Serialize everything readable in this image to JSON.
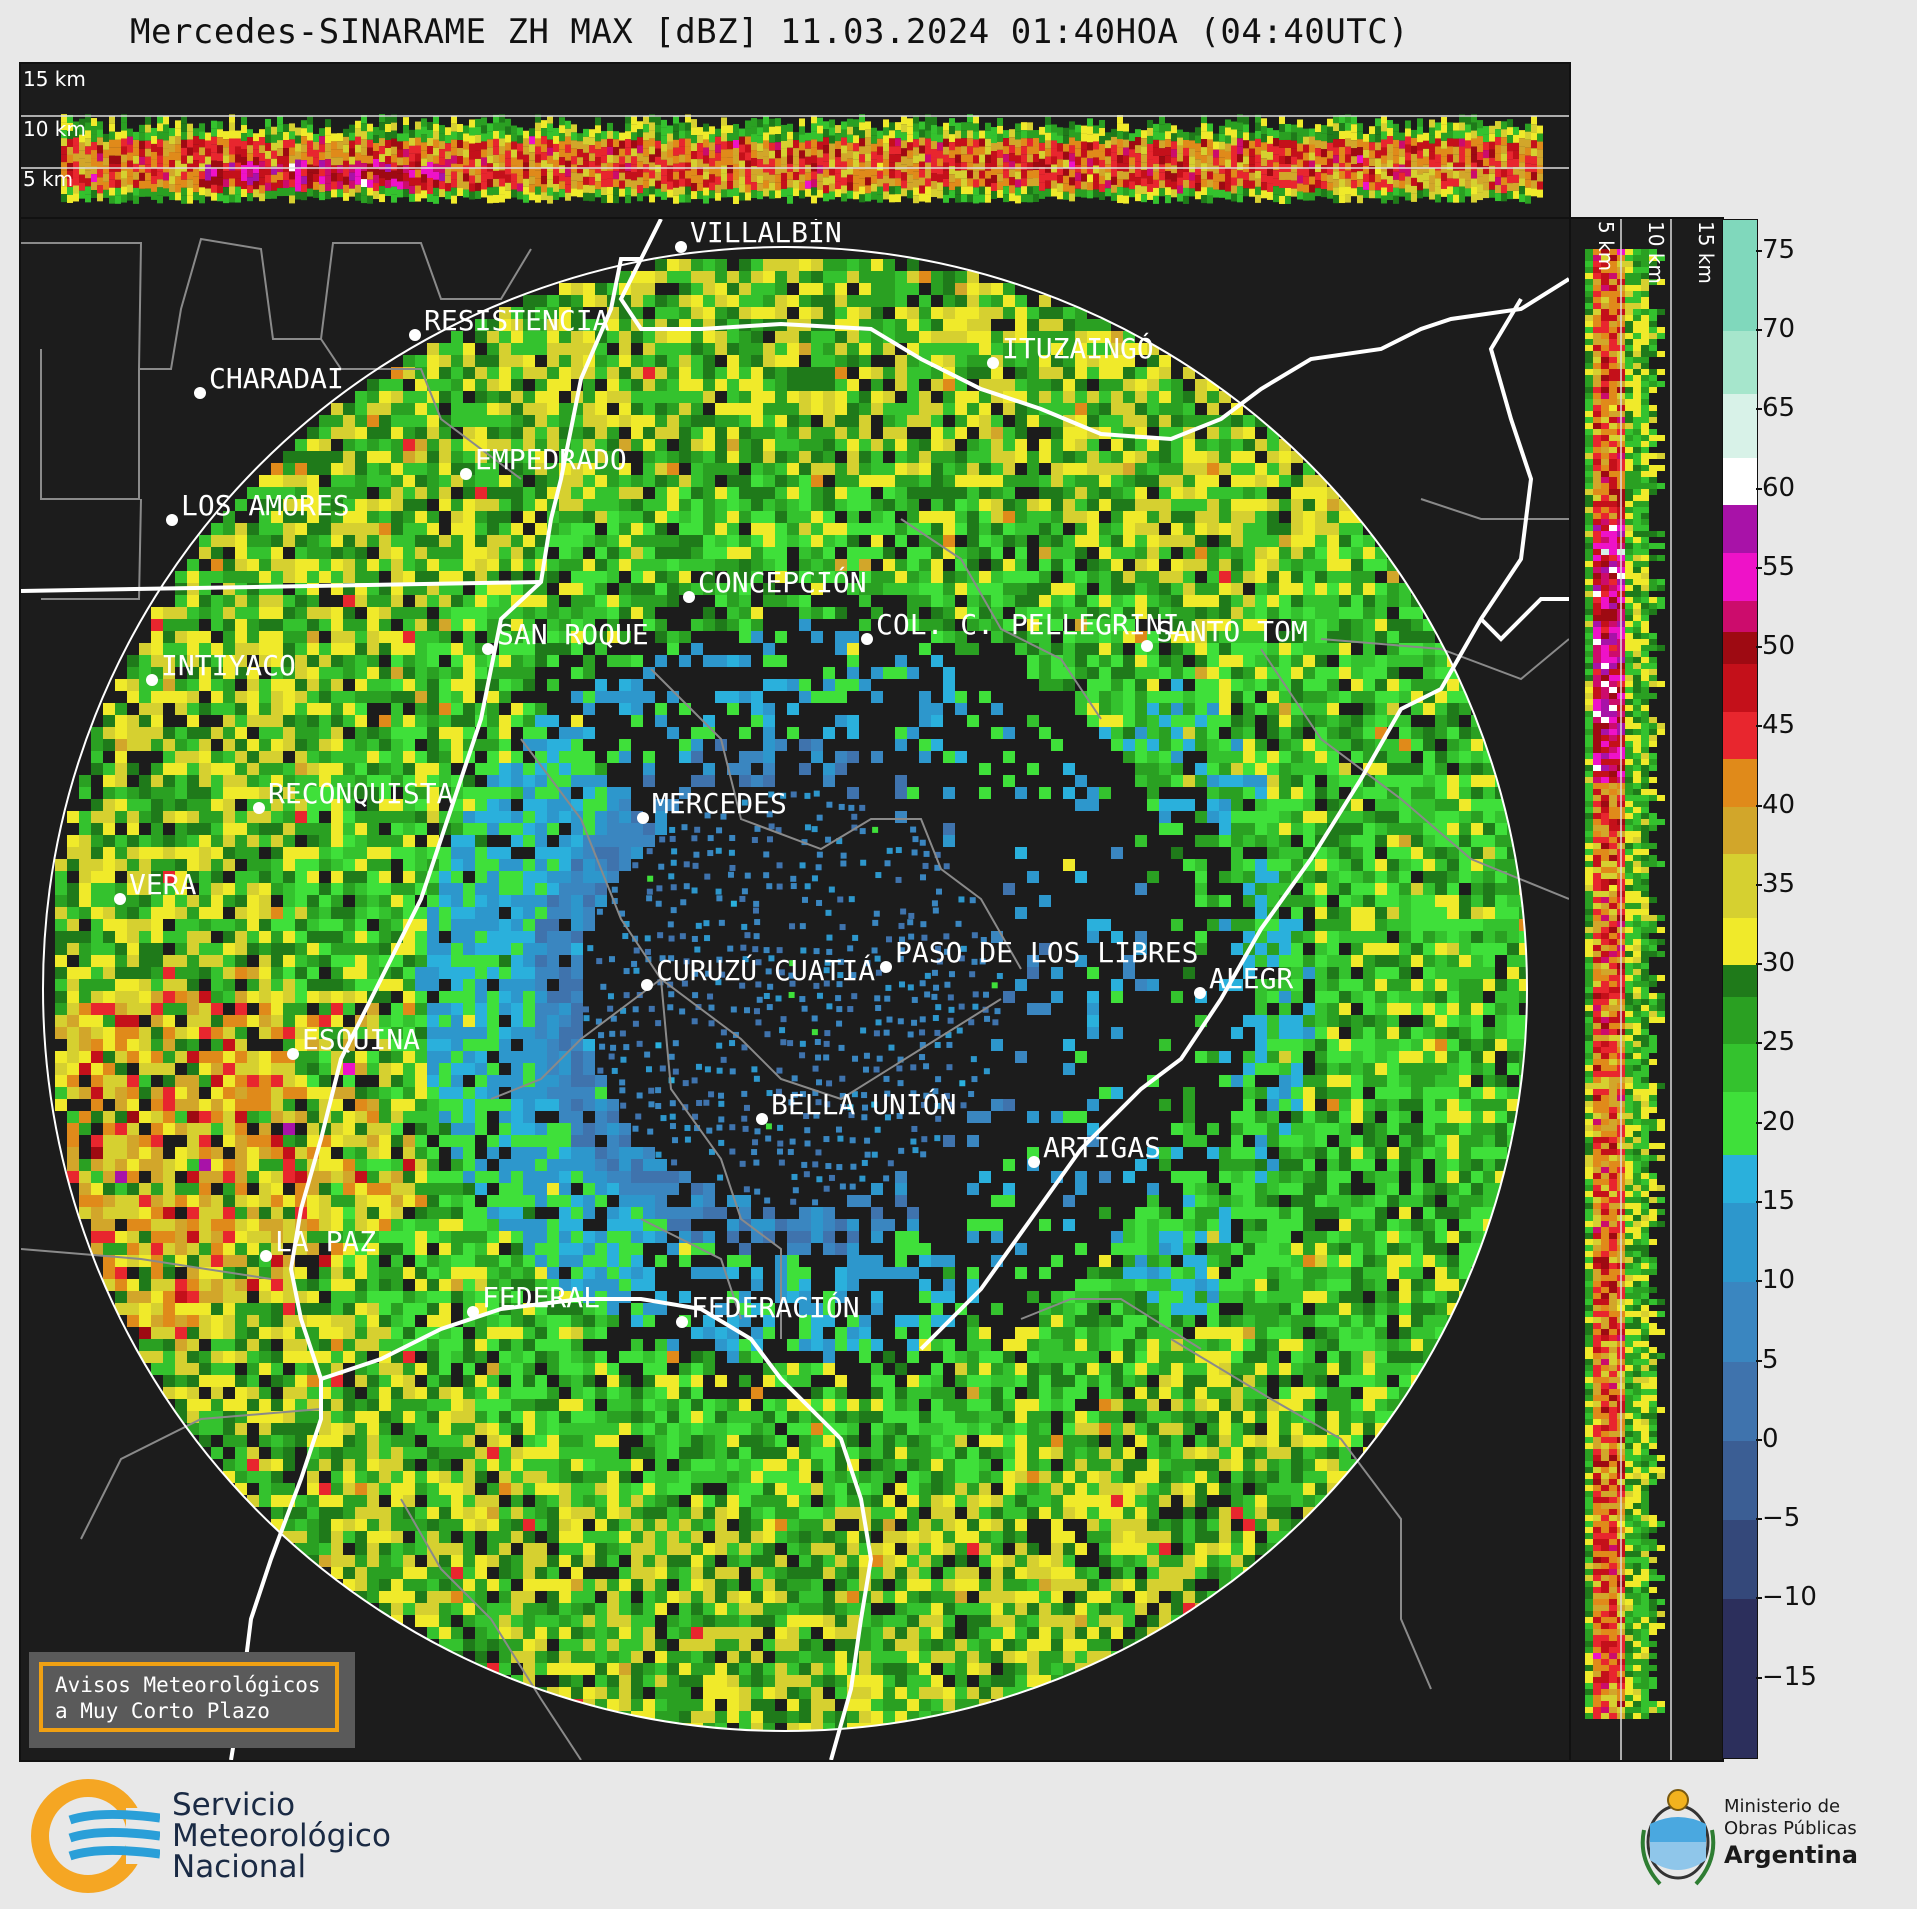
{
  "header": {
    "title": "Mercedes-SINARAME ZH MAX [dBZ] 11.03.2024 01:40HOA (04:40UTC)"
  },
  "top_panel": {
    "height_labels": [
      "15 km",
      "10 km",
      "5 km"
    ]
  },
  "side_panel": {
    "height_labels": [
      "5 km",
      "10 km",
      "15 km"
    ]
  },
  "colorbar": {
    "unit": "dBZ",
    "ticks": [
      "75",
      "70",
      "65",
      "60",
      "55",
      "50",
      "45",
      "40",
      "35",
      "30",
      "25",
      "20",
      "15",
      "10",
      "5",
      "0",
      "−5",
      "−10",
      "−15"
    ],
    "range": [
      -20,
      77
    ],
    "stops": [
      {
        "from": -20,
        "color": "#2c2f5c"
      },
      {
        "from": -10,
        "color": "#34487a"
      },
      {
        "from": -5,
        "color": "#3b5e94"
      },
      {
        "from": 0,
        "color": "#3f73ad"
      },
      {
        "from": 5,
        "color": "#3a86c0"
      },
      {
        "from": 10,
        "color": "#2d97cc"
      },
      {
        "from": 15,
        "color": "#2ab0dc"
      },
      {
        "from": 18,
        "color": "#3fe03a"
      },
      {
        "from": 22,
        "color": "#34c22e"
      },
      {
        "from": 25,
        "color": "#2aa022"
      },
      {
        "from": 28,
        "color": "#1f7a1a"
      },
      {
        "from": 30,
        "color": "#f0ea2a"
      },
      {
        "from": 33,
        "color": "#d6d030"
      },
      {
        "from": 37,
        "color": "#d2a62a"
      },
      {
        "from": 40,
        "color": "#e08a1a"
      },
      {
        "from": 43,
        "color": "#e8262e"
      },
      {
        "from": 46,
        "color": "#c4101a"
      },
      {
        "from": 49,
        "color": "#9e0a12"
      },
      {
        "from": 51,
        "color": "#cc0c6c"
      },
      {
        "from": 53,
        "color": "#ee12c8"
      },
      {
        "from": 56,
        "color": "#a812a8"
      },
      {
        "from": 59,
        "color": "#ffffff"
      },
      {
        "from": 62,
        "color": "#d8f2e8"
      },
      {
        "from": 66,
        "color": "#a6e6cc"
      },
      {
        "from": 70,
        "color": "#80d8bc"
      }
    ]
  },
  "cities": [
    {
      "name": "VILLALBÍN"
    },
    {
      "name": "RESISTENCIA"
    },
    {
      "name": "CHARADAI"
    },
    {
      "name": "ITUZAINGÓ"
    },
    {
      "name": "EMPEDRADO"
    },
    {
      "name": "LOS AMORES"
    },
    {
      "name": "CONCEPCIÓN"
    },
    {
      "name": "SAN ROQUE"
    },
    {
      "name": "COL. C. PELLEGRINI"
    },
    {
      "name": "SANTO TOM"
    },
    {
      "name": "INTIYACO"
    },
    {
      "name": "MERCEDES"
    },
    {
      "name": "RECONQUISTA"
    },
    {
      "name": "VERA"
    },
    {
      "name": "PASO DE LOS LIBRES"
    },
    {
      "name": "CURUZÚ CUATIÁ"
    },
    {
      "name": "ALEGR"
    },
    {
      "name": "ESQUINA"
    },
    {
      "name": "BELLA UNIÓN"
    },
    {
      "name": "ARTIGAS"
    },
    {
      "name": "LA PAZ"
    },
    {
      "name": "FEDERAL"
    },
    {
      "name": "FEDERACIÓN"
    }
  ],
  "warning_box": {
    "line1": "Avisos Meteorológicos",
    "line2": "a Muy Corto Plazo"
  },
  "logos": {
    "smn": [
      "Servicio",
      "Meteorológico",
      "Nacional"
    ],
    "ministry": [
      "Ministerio de",
      "Obras Públicas",
      "Argentina"
    ]
  }
}
